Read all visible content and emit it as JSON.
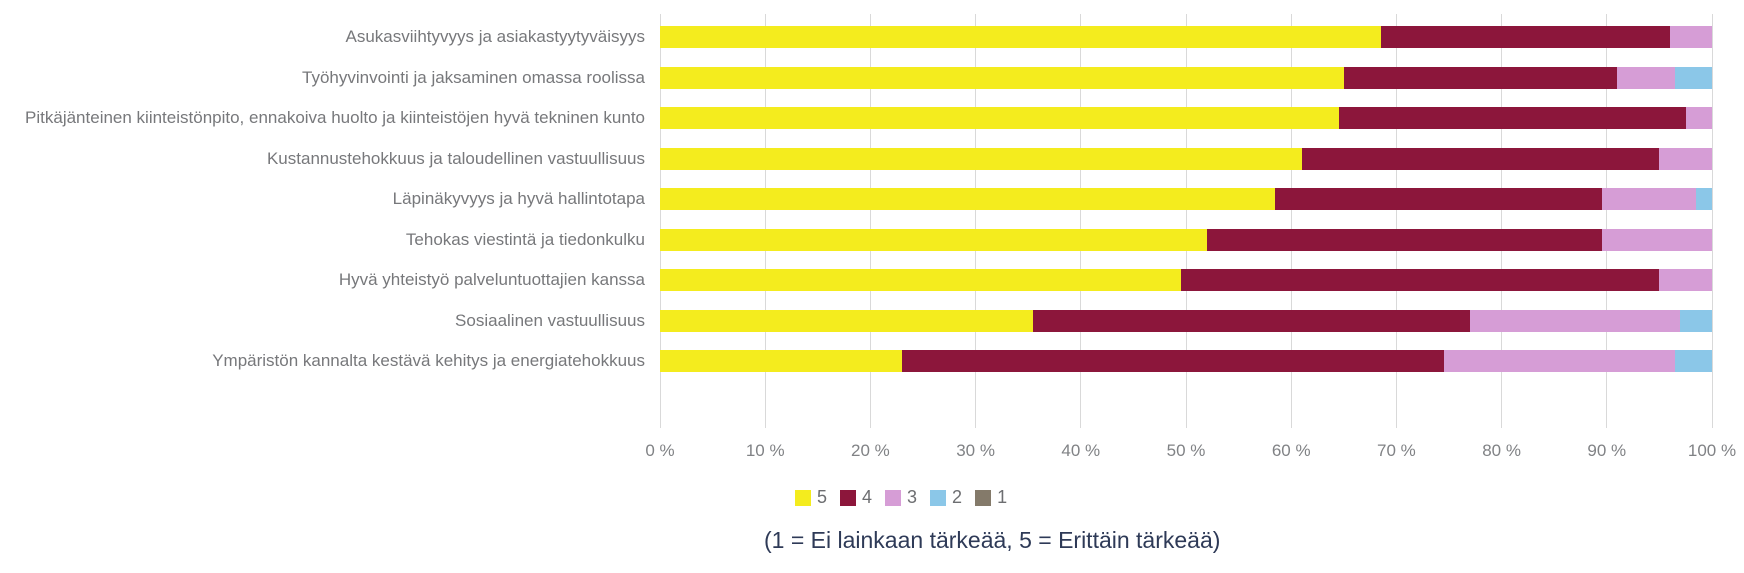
{
  "chart_data": {
    "type": "bar",
    "orientation": "horizontal",
    "stacked": true,
    "unit": "%",
    "categories": [
      "Asukasviihtyvyys ja asiakastyytyväisyys",
      "Työhyvinvointi ja jaksaminen omassa roolissa",
      "Pitkäjänteinen kiinteistönpito, ennakoiva huolto ja kiinteistöjen hyvä tekninen kunto",
      "Kustannustehokkuus ja taloudellinen vastuullisuus",
      "Läpinäkyvyys ja hyvä hallintotapa",
      "Tehokas viestintä ja tiedonkulku",
      "Hyvä yhteistyö palveluntuottajien kanssa",
      "Sosiaalinen vastuullisuus",
      "Ympäristön kannalta kestävä kehitys ja energiatehokkuus"
    ],
    "series": [
      {
        "name": "5",
        "color": "#f4ec1e",
        "values": [
          68.5,
          65,
          64.5,
          61,
          58.5,
          52,
          49.5,
          35.5,
          23
        ]
      },
      {
        "name": "4",
        "color": "#8c163b",
        "values": [
          27.5,
          26,
          33,
          34,
          31,
          37.5,
          45.5,
          41.5,
          51.5
        ]
      },
      {
        "name": "3",
        "color": "#d69dd6",
        "values": [
          4,
          5.5,
          2.5,
          5,
          9,
          10.5,
          5,
          20,
          22
        ]
      },
      {
        "name": "2",
        "color": "#8bc7e8",
        "values": [
          0,
          3.5,
          0,
          0,
          1.5,
          0,
          0,
          3,
          3.5
        ]
      },
      {
        "name": "1",
        "color": "#847a6a",
        "values": [
          0,
          0,
          0,
          0,
          0,
          0,
          0,
          0,
          0
        ]
      }
    ],
    "x_axis": {
      "min": 0,
      "max": 100,
      "grid": true,
      "ticks": [
        "0 %",
        "10 %",
        "20 %",
        "30 %",
        "40 %",
        "50 %",
        "60 %",
        "70 %",
        "80 %",
        "90 %",
        "100 %"
      ]
    },
    "legend": {
      "position": "bottom",
      "entries": [
        "5",
        "4",
        "3",
        "2",
        "1"
      ]
    },
    "caption": "(1 = Ei lainkaan tärkeää, 5 = Erittäin tärkeää)"
  },
  "colors": {
    "grid": "#d9d9d9",
    "label_text": "#77787b",
    "axis_text": "#808285",
    "legend_text": "#6d6e71",
    "caption_text": "#2e3a57",
    "background": "#ffffff"
  }
}
